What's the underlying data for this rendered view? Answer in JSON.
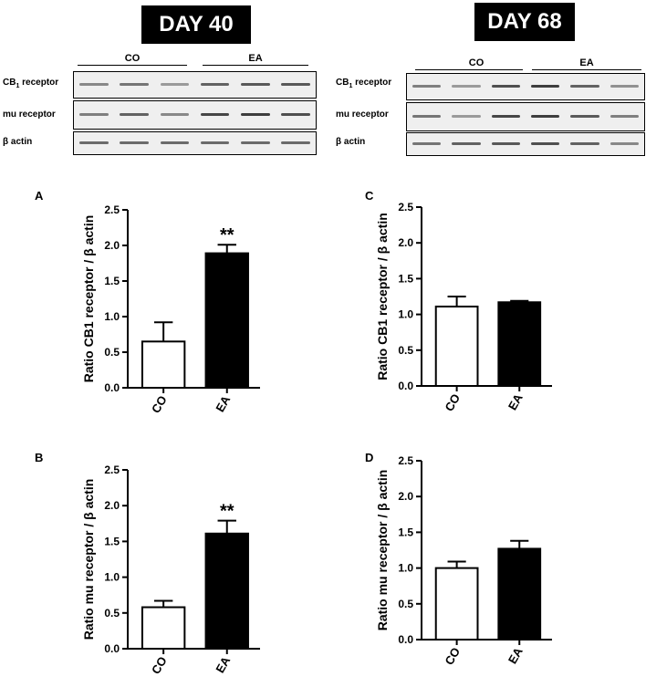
{
  "blots": [
    {
      "title": "DAY 40",
      "groups": [
        "CO",
        "EA"
      ],
      "rows": [
        {
          "label": "CB1 receptor",
          "label_main": "CB",
          "label_sub": "1",
          "label_rest": " receptor",
          "band_intensity": [
            0.55,
            0.65,
            0.45,
            0.75,
            0.8,
            0.8
          ]
        },
        {
          "label": "mu receptor",
          "label_main": "mu receptor",
          "label_sub": "",
          "label_rest": "",
          "band_intensity": [
            0.6,
            0.75,
            0.55,
            0.9,
            0.95,
            0.85
          ]
        },
        {
          "label": "β actin",
          "label_main": "β actin",
          "label_sub": "",
          "label_rest": "",
          "band_intensity": [
            0.7,
            0.7,
            0.7,
            0.7,
            0.7,
            0.7
          ]
        }
      ]
    },
    {
      "title": "DAY 68",
      "groups": [
        "CO",
        "EA"
      ],
      "rows": [
        {
          "label": "CB1 receptor",
          "label_main": "CB",
          "label_sub": "1",
          "label_rest": " receptor",
          "band_intensity": [
            0.6,
            0.45,
            0.85,
            0.95,
            0.75,
            0.5
          ]
        },
        {
          "label": "mu receptor",
          "label_main": "mu receptor",
          "label_sub": "",
          "label_rest": "",
          "band_intensity": [
            0.65,
            0.45,
            0.9,
            0.95,
            0.8,
            0.6
          ]
        },
        {
          "label": "β actin",
          "label_main": "β actin",
          "label_sub": "",
          "label_rest": "",
          "band_intensity": [
            0.65,
            0.75,
            0.8,
            0.85,
            0.75,
            0.55
          ]
        }
      ]
    }
  ],
  "chart_data": [
    {
      "panel": "A",
      "type": "bar",
      "categories": [
        "CO",
        "EA"
      ],
      "values": [
        0.65,
        1.89
      ],
      "errors": [
        0.27,
        0.12
      ],
      "colors": [
        "#ffffff",
        "#000000"
      ],
      "significance": [
        "",
        "**"
      ],
      "ylabel": "Ratio CB1 receptor / β actin",
      "yticks": [
        "0.0",
        "0.5",
        "1.0",
        "1.5",
        "2.0",
        "2.5"
      ],
      "ylim": [
        0,
        2.5
      ]
    },
    {
      "panel": "B",
      "type": "bar",
      "categories": [
        "CO",
        "EA"
      ],
      "values": [
        0.58,
        1.61
      ],
      "errors": [
        0.09,
        0.18
      ],
      "colors": [
        "#ffffff",
        "#000000"
      ],
      "significance": [
        "",
        "**"
      ],
      "ylabel": "Ratio mu receptor / β actin",
      "yticks": [
        "0.0",
        "0.5",
        "1.0",
        "1.5",
        "2.0",
        "2.5"
      ],
      "ylim": [
        0,
        2.5
      ]
    },
    {
      "panel": "C",
      "type": "bar",
      "categories": [
        "CO",
        "EA"
      ],
      "values": [
        1.11,
        1.17
      ],
      "errors": [
        0.14,
        0.02
      ],
      "colors": [
        "#ffffff",
        "#000000"
      ],
      "significance": [
        "",
        ""
      ],
      "ylabel": "Ratio CB1 receptor / β actin",
      "yticks": [
        "0.0",
        "0.5",
        "1.0",
        "1.5",
        "2.0",
        "2.5"
      ],
      "ylim": [
        0,
        2.5
      ]
    },
    {
      "panel": "D",
      "type": "bar",
      "categories": [
        "CO",
        "EA"
      ],
      "values": [
        1.0,
        1.27
      ],
      "errors": [
        0.09,
        0.11
      ],
      "colors": [
        "#ffffff",
        "#000000"
      ],
      "significance": [
        "",
        ""
      ],
      "ylabel": "Ratio mu receptor / β actin",
      "yticks": [
        "0.0",
        "0.5",
        "1.0",
        "1.5",
        "2.0",
        "2.5"
      ],
      "ylim": [
        0,
        2.5
      ]
    }
  ]
}
